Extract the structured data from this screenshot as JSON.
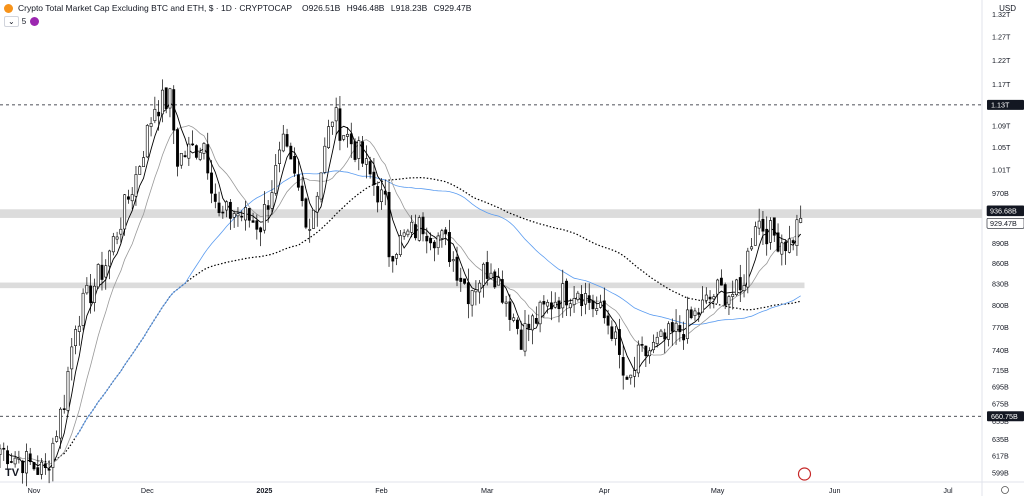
{
  "header": {
    "title": "Crypto Total Market Cap Excluding BTC and ETH, $ · 1D · CRYPTOCAP",
    "ohlc": [
      {
        "k": "O",
        "v": "926.51B"
      },
      {
        "k": "H",
        "v": "946.48B"
      },
      {
        "k": "L",
        "v": "918.23B"
      },
      {
        "k": "C",
        "v": "929.47B"
      }
    ],
    "indicator_count": "5",
    "currency": "USD"
  },
  "chart_data": {
    "type": "candlestick",
    "y_scale": "log",
    "y_ticks": [
      {
        "label": "1.32T",
        "value": 1320
      },
      {
        "label": "1.27T",
        "value": 1270
      },
      {
        "label": "1.22T",
        "value": 1220
      },
      {
        "label": "1.17T",
        "value": 1170
      },
      {
        "label": "1.09T",
        "value": 1090
      },
      {
        "label": "1.05T",
        "value": 1050
      },
      {
        "label": "1.01T",
        "value": 1010
      },
      {
        "label": "970B",
        "value": 970
      },
      {
        "label": "890B",
        "value": 890
      },
      {
        "label": "860B",
        "value": 860
      },
      {
        "label": "830B",
        "value": 830
      },
      {
        "label": "800B",
        "value": 800
      },
      {
        "label": "770B",
        "value": 770
      },
      {
        "label": "740B",
        "value": 740
      },
      {
        "label": "715B",
        "value": 715
      },
      {
        "label": "695B",
        "value": 695
      },
      {
        "label": "675B",
        "value": 675
      },
      {
        "label": "655B",
        "value": 655
      },
      {
        "label": "635B",
        "value": 635
      },
      {
        "label": "617B",
        "value": 617
      },
      {
        "label": "599B",
        "value": 599
      }
    ],
    "x_ticks": [
      {
        "label": "Nov",
        "date": "2024-11-01"
      },
      {
        "label": "Dec",
        "date": "2024-12-01"
      },
      {
        "label": "2025",
        "date": "2025-01-01"
      },
      {
        "label": "Feb",
        "date": "2025-02-01"
      },
      {
        "label": "Mar",
        "date": "2025-03-01"
      },
      {
        "label": "Apr",
        "date": "2025-04-01"
      },
      {
        "label": "May",
        "date": "2025-05-01"
      },
      {
        "label": "Jun",
        "date": "2025-06-01"
      },
      {
        "label": "Jul",
        "date": "2025-07-01"
      }
    ],
    "x_range": [
      "2024-10-23",
      "2025-07-10"
    ],
    "y_range": [
      590,
      1340
    ],
    "horizontal_levels": [
      {
        "label": "1.13T",
        "value": 1130,
        "style": "dashed"
      },
      {
        "label": "660.75B",
        "value": 660.75,
        "style": "dashed"
      }
    ],
    "zones": [
      {
        "from": 930,
        "to": 944
      },
      {
        "from": 824,
        "to": 832
      }
    ],
    "price_tags": [
      {
        "label": "936.68B",
        "value": 936.68,
        "style": "dark"
      },
      {
        "label": "929.47B",
        "value": 929.47,
        "style": "light"
      }
    ],
    "key_closes": [
      {
        "date": "2024-10-23",
        "close": 625
      },
      {
        "date": "2024-11-04",
        "close": 600
      },
      {
        "date": "2024-11-09",
        "close": 680
      },
      {
        "date": "2024-11-12",
        "close": 780
      },
      {
        "date": "2024-11-20",
        "close": 860
      },
      {
        "date": "2024-11-28",
        "close": 1000
      },
      {
        "date": "2024-12-03",
        "close": 1130
      },
      {
        "date": "2024-12-07",
        "close": 1140
      },
      {
        "date": "2024-12-09",
        "close": 1030
      },
      {
        "date": "2024-12-16",
        "close": 1060
      },
      {
        "date": "2024-12-20",
        "close": 930
      },
      {
        "date": "2024-12-24",
        "close": 940
      },
      {
        "date": "2024-12-31",
        "close": 920
      },
      {
        "date": "2025-01-06",
        "close": 1050
      },
      {
        "date": "2025-01-13",
        "close": 920
      },
      {
        "date": "2025-01-19",
        "close": 1110
      },
      {
        "date": "2025-01-25",
        "close": 1050
      },
      {
        "date": "2025-02-02",
        "close": 950
      },
      {
        "date": "2025-02-03",
        "close": 880
      },
      {
        "date": "2025-02-12",
        "close": 920
      },
      {
        "date": "2025-02-18",
        "close": 890
      },
      {
        "date": "2025-02-24",
        "close": 820
      },
      {
        "date": "2025-03-02",
        "close": 860
      },
      {
        "date": "2025-03-10",
        "close": 760
      },
      {
        "date": "2025-03-19",
        "close": 810
      },
      {
        "date": "2025-03-25",
        "close": 825
      },
      {
        "date": "2025-04-03",
        "close": 770
      },
      {
        "date": "2025-04-07",
        "close": 690
      },
      {
        "date": "2025-04-10",
        "close": 730
      },
      {
        "date": "2025-04-22",
        "close": 770
      },
      {
        "date": "2025-05-01",
        "close": 820
      },
      {
        "date": "2025-05-07",
        "close": 815
      },
      {
        "date": "2025-05-11",
        "close": 930
      },
      {
        "date": "2025-05-15",
        "close": 905
      },
      {
        "date": "2025-05-20",
        "close": 890
      },
      {
        "date": "2025-05-23",
        "close": 929.47
      }
    ],
    "colors": {
      "up": "#ffffff",
      "down": "#000000",
      "ma_fast": "#000000",
      "ma_slow": "#999999",
      "ma_blue": "#5b9cf0",
      "ma_dotted": "#000000",
      "zone": "#d6d6d6"
    }
  }
}
